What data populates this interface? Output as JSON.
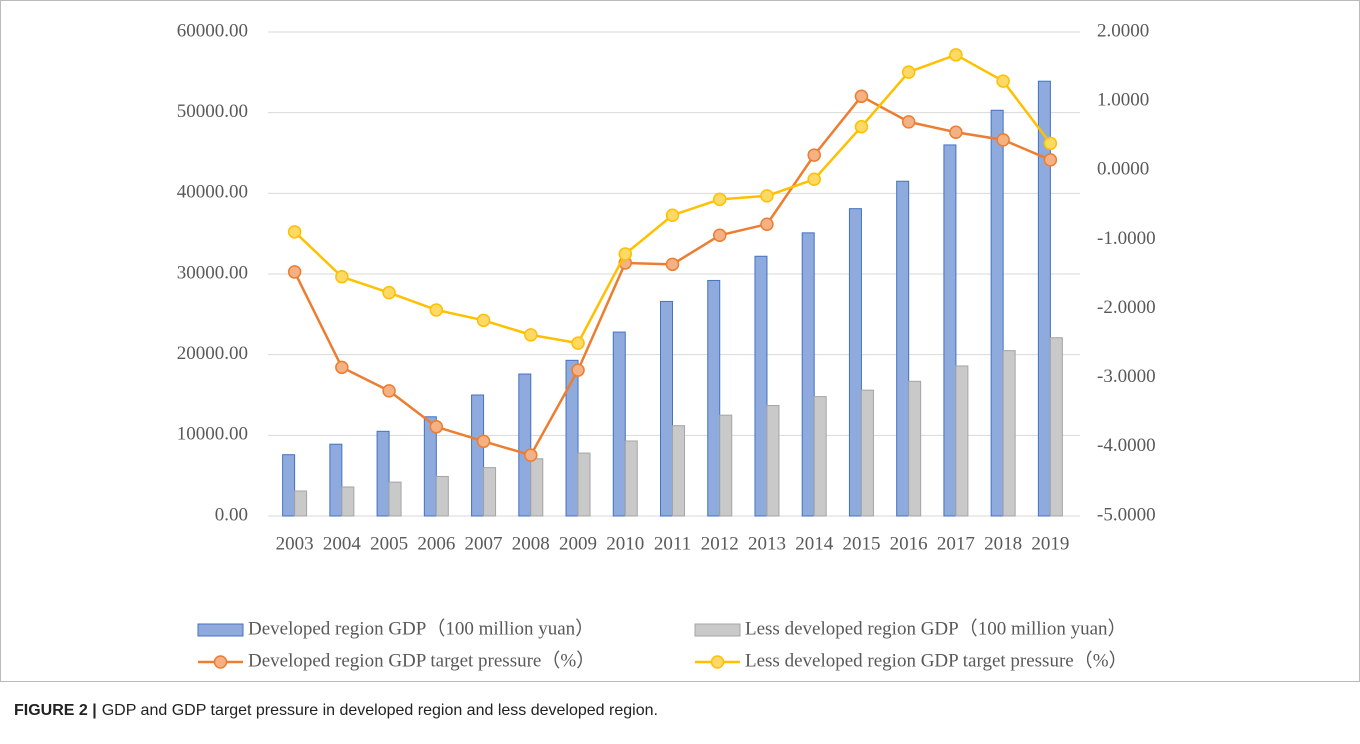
{
  "chart_data": {
    "type": "bar",
    "categories": [
      "2003",
      "2004",
      "2005",
      "2006",
      "2007",
      "2008",
      "2009",
      "2010",
      "2011",
      "2012",
      "2013",
      "2014",
      "2015",
      "2016",
      "2017",
      "2018",
      "2019"
    ],
    "series": [
      {
        "name": "Developed region GDP（100 million yuan）",
        "type": "bar",
        "color": "#8faadc",
        "stroke": "#4472c4",
        "values": [
          7600,
          8900,
          10500,
          12300,
          15000,
          17600,
          19300,
          22800,
          26600,
          29200,
          32200,
          35100,
          38100,
          41500,
          46000,
          50300,
          53900
        ]
      },
      {
        "name": "Less developed region GDP（100 million yuan）",
        "type": "bar",
        "color": "#c9c9c9",
        "stroke": "#a5a5a5",
        "values": [
          3100,
          3600,
          4200,
          4900,
          6000,
          7100,
          7800,
          9300,
          11200,
          12500,
          13700,
          14800,
          15600,
          16700,
          18600,
          20500,
          22100
        ]
      },
      {
        "name": "Developed region GDP target pressure（%）",
        "type": "line",
        "axis": "y2",
        "color": "#ed7d31",
        "marker_color": "#f4b183",
        "values": [
          -1.47,
          -2.85,
          -3.19,
          -3.71,
          -3.92,
          -4.12,
          -2.89,
          -1.34,
          -1.36,
          -0.94,
          -0.78,
          0.22,
          1.07,
          0.7,
          0.55,
          0.44,
          0.15
        ]
      },
      {
        "name": "Less developed region GDP target pressure（%）",
        "type": "line",
        "axis": "y2",
        "color": "#ffc000",
        "marker_color": "#ffd966",
        "values": [
          -0.89,
          -1.54,
          -1.77,
          -2.02,
          -2.17,
          -2.38,
          -2.5,
          -1.21,
          -0.65,
          -0.42,
          -0.37,
          -0.13,
          0.63,
          1.42,
          1.67,
          1.29,
          0.39
        ]
      }
    ],
    "ylim": [
      0,
      60000
    ],
    "yticks": [
      {
        "value": 0,
        "label": "0.00"
      },
      {
        "value": 10000,
        "label": "10000.00"
      },
      {
        "value": 20000,
        "label": "20000.00"
      },
      {
        "value": 30000,
        "label": "30000.00"
      },
      {
        "value": 40000,
        "label": "40000.00"
      },
      {
        "value": 50000,
        "label": "50000.00"
      },
      {
        "value": 60000,
        "label": "60000.00"
      }
    ],
    "y2lim": [
      -5,
      2
    ],
    "y2ticks": [
      {
        "value": -5,
        "label": "-5.0000"
      },
      {
        "value": -4,
        "label": "-4.0000"
      },
      {
        "value": -3,
        "label": "-3.0000"
      },
      {
        "value": -2,
        "label": "-2.0000"
      },
      {
        "value": -1,
        "label": "-1.0000"
      },
      {
        "value": 0,
        "label": "0.0000"
      },
      {
        "value": 1,
        "label": "1.0000"
      },
      {
        "value": 2,
        "label": "2.0000"
      }
    ],
    "grid": true,
    "legend": "bottom"
  },
  "caption": {
    "label": "FIGURE 2 |",
    "text": "GDP and GDP target pressure in developed region and less developed region."
  }
}
